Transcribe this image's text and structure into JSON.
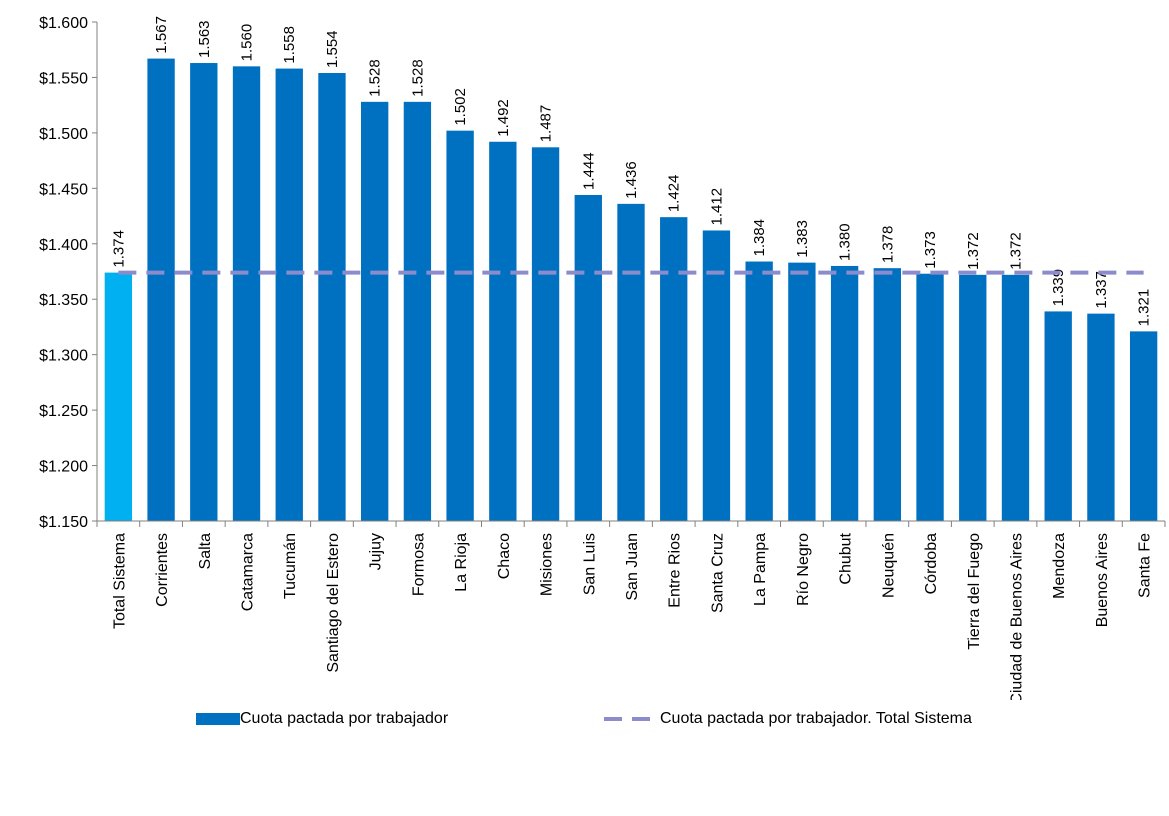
{
  "chart_data": {
    "type": "bar",
    "categories": [
      "Total Sistema",
      "Corrientes",
      "Salta",
      "Catamarca",
      "Tucumán",
      "Santiago del Estero",
      "Jujuy",
      "Formosa",
      "La Rioja",
      "Chaco",
      "Misiones",
      "San Luis",
      "San Juan",
      "Entre Rios",
      "Santa Cruz",
      "La Pampa",
      "Río Negro",
      "Chubut",
      "Neuquén",
      "Córdoba",
      "Tierra del Fuego",
      "Ciudad de Buenos Aires",
      "Mendoza",
      "Buenos Aires",
      "Santa Fe"
    ],
    "series": [
      {
        "name": "Cuota pactada por trabajador",
        "values": [
          1374,
          1567,
          1563,
          1560,
          1558,
          1554,
          1528,
          1528,
          1502,
          1492,
          1487,
          1444,
          1436,
          1424,
          1412,
          1384,
          1383,
          1380,
          1378,
          1373,
          1372,
          1372,
          1339,
          1337,
          1321
        ],
        "labels": [
          "1.374",
          "1.567",
          "1.563",
          "1.560",
          "1.558",
          "1.554",
          "1.528",
          "1.528",
          "1.502",
          "1.492",
          "1.487",
          "1.444",
          "1.436",
          "1.424",
          "1.412",
          "1.384",
          "1.383",
          "1.380",
          "1.378",
          "1.373",
          "1.372",
          "1.372",
          "1.339",
          "1.337",
          "1.321"
        ]
      },
      {
        "name": "Cuota pactada por trabajador. Total Sistema",
        "type": "line",
        "style": "dashed",
        "value": 1374
      }
    ],
    "ylim": [
      1150,
      1600
    ],
    "yticks": [
      1150,
      1200,
      1250,
      1300,
      1350,
      1400,
      1450,
      1500,
      1550,
      1600
    ],
    "ytick_labels": [
      "$1.150",
      "$1.200",
      "$1.250",
      "$1.300",
      "$1.350",
      "$1.400",
      "$1.450",
      "$1.500",
      "$1.550",
      "$1.600"
    ],
    "highlight_index": 0,
    "grid": false,
    "legend_position": "bottom",
    "colors": {
      "bar": "#0070c0",
      "highlight": "#00b0f0",
      "line": "#8c8ccc",
      "axis": "#808080"
    }
  }
}
